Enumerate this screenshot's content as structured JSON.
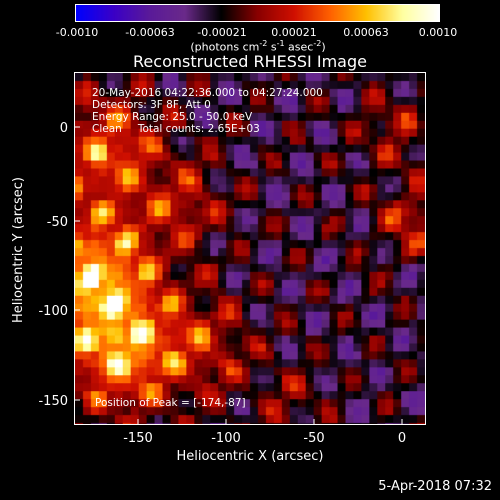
{
  "colorbar": {
    "ticks": [
      "-0.0010",
      "-0.00063",
      "-0.00021",
      "0.00021",
      "0.00063",
      "0.0010"
    ],
    "unit_main": "(photons cm",
    "unit_exp1": "-2",
    "unit_mid1": " s",
    "unit_exp2": "-1",
    "unit_mid2": " asec",
    "unit_exp3": "-2",
    "unit_end": ")"
  },
  "plot": {
    "title": "Reconstructed RHESSI Image",
    "xlabel": "Heliocentric X (arcsec)",
    "ylabel": "Heliocentric Y (arcsec)",
    "x_ticks": [
      "-150",
      "-100",
      "-50",
      "0"
    ],
    "y_ticks": [
      "0",
      "-50",
      "-100",
      "-150"
    ],
    "xlim": [
      -180,
      12
    ],
    "ylim": [
      -163,
      25
    ]
  },
  "info": {
    "time_range": "20-May-2016 04:22:36.000 to 04:27:24.000",
    "detectors": "Detectors: 3F 8F, Att 0",
    "energy": "Energy Range: 25.0 - 50.0 keV",
    "method": "Clean",
    "total_counts": "Total counts: 2.65E+03",
    "peak": "Position of Peak = [-174,-87]"
  },
  "footer": {
    "date": "5-Apr-2018 07:32"
  },
  "colormap": [
    "#0000ff",
    "#3a00c8",
    "#5a1a9a",
    "#6a2a8a",
    "#000000",
    "#8a0000",
    "#d01000",
    "#ff6000",
    "#ffc000",
    "#ffffa0",
    "#ffffff"
  ]
}
